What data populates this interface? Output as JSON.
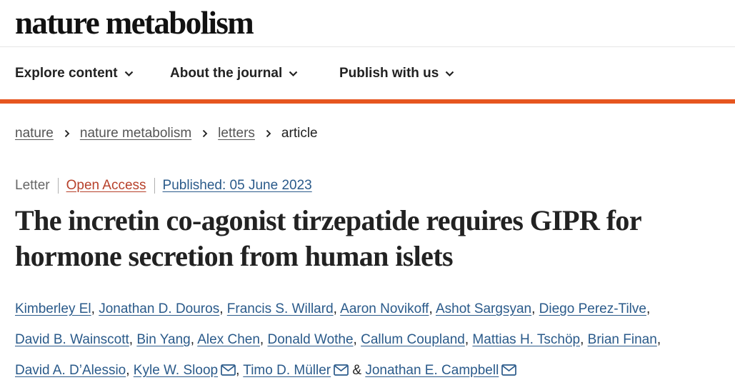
{
  "masthead": {
    "logo_text": "nature metabolism"
  },
  "nav": {
    "items": [
      {
        "label": "Explore content",
        "icon": "chevron-down-icon"
      },
      {
        "label": "About the journal",
        "icon": "chevron-down-icon"
      },
      {
        "label": "Publish with us",
        "icon": "chevron-down-icon"
      }
    ],
    "accent_color": "#e6561f"
  },
  "breadcrumb": {
    "items": [
      "nature",
      "nature metabolism",
      "letters"
    ],
    "current": "article",
    "separator_icon": "chevron-right-icon"
  },
  "article": {
    "type": "Letter",
    "access": "Open Access",
    "published": "Published: 05 June 2023",
    "title": "The incretin co-agonist tirzepatide requires GIPR for hormone secretion from human islets",
    "authors": [
      {
        "name": "Kimberley El",
        "sep": ", "
      },
      {
        "name": "Jonathan D. Douros",
        "sep": ", "
      },
      {
        "name": "Francis S. Willard",
        "sep": ", "
      },
      {
        "name": "Aaron Novikoff",
        "sep": ", "
      },
      {
        "name": "Ashot Sargsyan",
        "sep": ", "
      },
      {
        "name": "Diego Perez-Tilve",
        "sep": ", "
      },
      {
        "name": "David B. Wainscott",
        "sep": ", "
      },
      {
        "name": "Bin Yang",
        "sep": ", "
      },
      {
        "name": "Alex Chen",
        "sep": ", "
      },
      {
        "name": "Donald Wothe",
        "sep": ", "
      },
      {
        "name": "Callum Coupland",
        "sep": ", "
      },
      {
        "name": "Mattias H. Tschöp",
        "sep": ", "
      },
      {
        "name": "Brian Finan",
        "sep": ", "
      },
      {
        "name": "David A. D’Alessio",
        "sep": ", "
      },
      {
        "name": "Kyle W. Sloop",
        "sep": ", ",
        "icon": "mail-icon"
      },
      {
        "name": "Timo D. Müller",
        "sep": " & ",
        "icon": "mail-icon"
      },
      {
        "name": "Jonathan E. Campbell",
        "sep": "",
        "icon": "mail-icon"
      }
    ],
    "link_color": "#2a5a8a",
    "oa_color": "#b7412b"
  }
}
